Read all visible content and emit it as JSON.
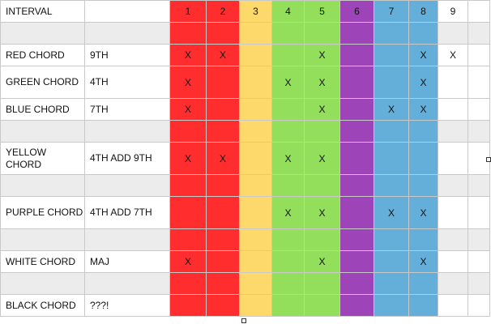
{
  "colors": [
    "#ff2d2d",
    "#ff2d2d",
    "#fcd96a",
    "#93de5a",
    "#93de5a",
    "#9c44b8",
    "#64afd9",
    "#64afd9",
    "#ffffff",
    "#ffffff"
  ],
  "header": {
    "label": "INTERVAL",
    "numbers": [
      "1",
      "2",
      "3",
      "4",
      "5",
      "6",
      "7",
      "8",
      "9",
      ""
    ]
  },
  "rows": [
    {
      "kind": "gap"
    },
    {
      "kind": "data",
      "name": "RED CHORD",
      "type": "9TH",
      "marks": [
        "X",
        "X",
        "",
        "",
        "X",
        "",
        "",
        "X",
        "X",
        ""
      ]
    },
    {
      "kind": "data",
      "tall": true,
      "name": "GREEN CHORD",
      "type": "4TH",
      "marks": [
        "X",
        "",
        "",
        "X",
        "X",
        "",
        "",
        "X",
        "",
        ""
      ]
    },
    {
      "kind": "data",
      "name": "BLUE CHORD",
      "type": "7TH",
      "marks": [
        "X",
        "",
        "",
        "",
        "X",
        "",
        "X",
        "X",
        "",
        ""
      ]
    },
    {
      "kind": "gap"
    },
    {
      "kind": "data",
      "tall": true,
      "name": "YELLOW CHORD",
      "type": "4TH ADD 9TH",
      "marks": [
        "X",
        "X",
        "",
        "X",
        "X",
        "",
        "",
        "",
        "",
        ""
      ]
    },
    {
      "kind": "gap"
    },
    {
      "kind": "data",
      "tall": true,
      "name": "PURPLE CHORD",
      "type": "4TH ADD 7TH",
      "marks": [
        "",
        "",
        "",
        "X",
        "X",
        "",
        "X",
        "X",
        "",
        ""
      ]
    },
    {
      "kind": "gap"
    },
    {
      "kind": "data",
      "name": "WHITE CHORD",
      "type": "MAJ",
      "marks": [
        "X",
        "",
        "",
        "",
        "X",
        "",
        "",
        "X",
        "",
        ""
      ]
    },
    {
      "kind": "gap"
    },
    {
      "kind": "data",
      "name": "BLACK CHORD",
      "type": "???!",
      "marks": [
        "",
        "",
        "",
        "",
        "",
        "",
        "",
        "",
        "",
        ""
      ]
    }
  ]
}
